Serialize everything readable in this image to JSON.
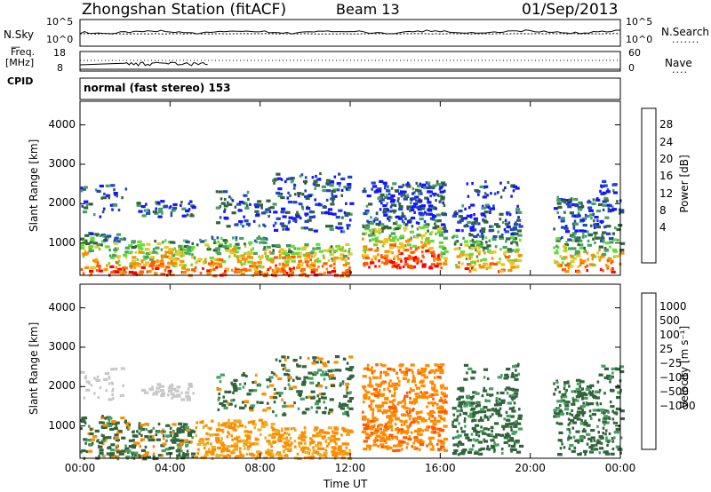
{
  "header": {
    "station": "Zhongshan Station (fitACF)",
    "beam": "Beam 13",
    "date": "01/Sep/2013"
  },
  "top_panels": {
    "nsky_label": "N.Sky",
    "nsearch_label": "N.Search",
    "nsky_tick_high": "10^5",
    "nsky_tick_low": "10^0",
    "nsearch_tick_high": "10^5",
    "nsearch_tick_low": "10^0",
    "freq_label": "Freq.",
    "freq_unit": "[MHz]",
    "freq_tick_high": "18",
    "freq_tick_low": "8",
    "nave_label": "Nave",
    "nave_tick_high": "60",
    "nave_tick_low": "0",
    "cpid_label": "CPID",
    "cpid_text": "normal (fast stereo) 153"
  },
  "colors": {
    "power": [
      "#1414ff",
      "#1e46c8",
      "#32643c",
      "#46a064",
      "#64dc32",
      "#e6c828",
      "#ff8c00",
      "#ff5a00",
      "#ff0000"
    ],
    "velocity": [
      "#ff0000",
      "#ff5a00",
      "#ff8c00",
      "#e6b428",
      "#c8c8c8",
      "#b4b4a0",
      "#64dc32",
      "#46a064",
      "#32643c",
      "#1e46c8",
      "#1414ff"
    ]
  },
  "chart_data": [
    {
      "type": "heatmap",
      "title": "Power",
      "ylabel": "Slant Range [km]",
      "xlabel": "Time UT",
      "ylim": [
        180,
        4600
      ],
      "yticks": [
        "1000",
        "2000",
        "3000",
        "4000"
      ],
      "xticks": [
        "00:00",
        "04:00",
        "08:00",
        "12:00",
        "16:00",
        "20:00",
        "00:00"
      ],
      "colorbar_label": "Power [dB]",
      "colorbar_ticks": [
        "4",
        "8",
        "12",
        "16",
        "20",
        "24",
        "28"
      ]
    },
    {
      "type": "heatmap",
      "title": "Velocity",
      "ylabel": "Slant Range [km]",
      "xlabel": "Time UT",
      "ylim": [
        180,
        4600
      ],
      "yticks": [
        "1000",
        "2000",
        "3000",
        "4000"
      ],
      "xticks": [
        "00:00",
        "04:00",
        "08:00",
        "12:00",
        "16:00",
        "20:00",
        "00:00"
      ],
      "colorbar_label": "Velocity [m s⁻¹]",
      "colorbar_ticks": [
        "1000",
        "500",
        "100",
        "25",
        "−25",
        "−100",
        "−500",
        "−1000"
      ]
    }
  ]
}
